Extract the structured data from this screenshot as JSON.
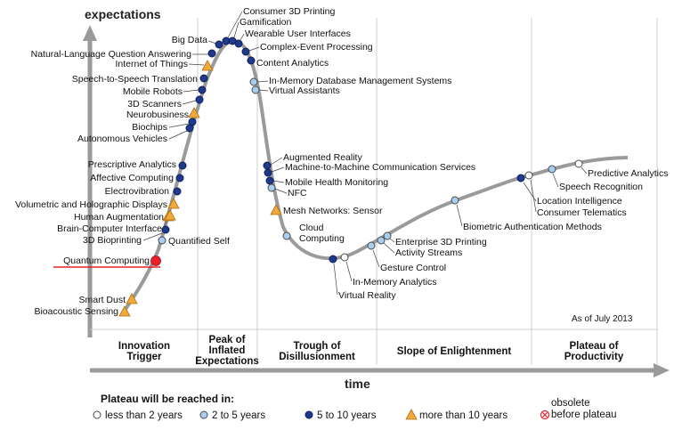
{
  "axes": {
    "y_label": "expectations",
    "x_label": "time"
  },
  "as_of": "As of July 2013",
  "phases": [
    [
      "Innovation",
      "Trigger"
    ],
    [
      "Peak of",
      "Inflated",
      "Expectations"
    ],
    [
      "Trough of",
      "Disillusionment"
    ],
    [
      "Slope of Enlightenment"
    ],
    [
      "Plateau of",
      "Productivity"
    ]
  ],
  "legend": {
    "title": "Plateau will be reached in:",
    "items": [
      {
        "label": "less than 2 years",
        "kind": "white"
      },
      {
        "label": "2 to 5 years",
        "kind": "lightblue"
      },
      {
        "label": "5 to 10 years",
        "kind": "darkblue"
      },
      {
        "label": "more than 10 years",
        "kind": "triangle"
      },
      {
        "label": [
          "obsolete",
          "before plateau"
        ],
        "kind": "obsolete"
      }
    ]
  },
  "colors": {
    "curve": "#9a9a9a",
    "white": "#ffffff",
    "lightblue": "#a9cdee",
    "darkblue": "#1f3a8a",
    "triangle": "#f0a93a",
    "highlight": "#e8202a",
    "obsolete": "#e8202a"
  },
  "technologies": [
    {
      "label": "Bioacoustic Sensing",
      "kind": "triangle",
      "phase": "Innovation Trigger"
    },
    {
      "label": "Smart Dust",
      "kind": "triangle",
      "phase": "Innovation Trigger"
    },
    {
      "label": "Quantum Computing",
      "kind": "highlight",
      "phase": "Innovation Trigger"
    },
    {
      "label": "Quantified Self",
      "kind": "lightblue",
      "phase": "Innovation Trigger"
    },
    {
      "label": "3D Bioprinting",
      "kind": "darkblue",
      "phase": "Innovation Trigger"
    },
    {
      "label": "Brain-Computer Interface",
      "kind": "triangle",
      "phase": "Innovation Trigger"
    },
    {
      "label": "Human Augmentation",
      "kind": "triangle",
      "phase": "Innovation Trigger"
    },
    {
      "label": "Volumetric and Holographic Displays",
      "kind": "triangle",
      "phase": "Innovation Trigger"
    },
    {
      "label": "Electrovibration",
      "kind": "darkblue",
      "phase": "Innovation Trigger"
    },
    {
      "label": "Affective Computing",
      "kind": "darkblue",
      "phase": "Innovation Trigger"
    },
    {
      "label": "Prescriptive Analytics",
      "kind": "darkblue",
      "phase": "Innovation Trigger"
    },
    {
      "label": "Autonomous Vehicles",
      "kind": "darkblue",
      "phase": "Peak of Inflated Expectations"
    },
    {
      "label": "Biochips",
      "kind": "darkblue",
      "phase": "Peak of Inflated Expectations"
    },
    {
      "label": "Neurobusiness",
      "kind": "triangle",
      "phase": "Peak of Inflated Expectations"
    },
    {
      "label": "3D Scanners",
      "kind": "darkblue",
      "phase": "Peak of Inflated Expectations"
    },
    {
      "label": "Mobile Robots",
      "kind": "darkblue",
      "phase": "Peak of Inflated Expectations"
    },
    {
      "label": "Speech-to-Speech Translation",
      "kind": "darkblue",
      "phase": "Peak of Inflated Expectations"
    },
    {
      "label": "Internet of Things",
      "kind": "triangle",
      "phase": "Peak of Inflated Expectations"
    },
    {
      "label": "Natural-Language Question Answering",
      "kind": "darkblue",
      "phase": "Peak of Inflated Expectations"
    },
    {
      "label": "Big Data",
      "kind": "darkblue",
      "phase": "Peak of Inflated Expectations"
    },
    {
      "label": "Consumer 3D Printing",
      "kind": "darkblue",
      "phase": "Peak of Inflated Expectations"
    },
    {
      "label": "Gamification",
      "kind": "darkblue",
      "phase": "Peak of Inflated Expectations"
    },
    {
      "label": "Wearable User Interfaces",
      "kind": "darkblue",
      "phase": "Peak of Inflated Expectations"
    },
    {
      "label": "Complex-Event Processing",
      "kind": "darkblue",
      "phase": "Peak of Inflated Expectations"
    },
    {
      "label": "Content Analytics",
      "kind": "darkblue",
      "phase": "Trough of Disillusionment"
    },
    {
      "label": "In-Memory Database Management Systems",
      "kind": "lightblue",
      "phase": "Trough of Disillusionment"
    },
    {
      "label": "Virtual Assistants",
      "kind": "lightblue",
      "phase": "Trough of Disillusionment"
    },
    {
      "label": "Augmented Reality",
      "kind": "darkblue",
      "phase": "Trough of Disillusionment"
    },
    {
      "label": "Machine-to-Machine Communication Services",
      "kind": "darkblue",
      "phase": "Trough of Disillusionment"
    },
    {
      "label": "Mobile Health Monitoring",
      "kind": "darkblue",
      "phase": "Trough of Disillusionment"
    },
    {
      "label": "NFC",
      "kind": "lightblue",
      "phase": "Trough of Disillusionment"
    },
    {
      "label": "Mesh Networks: Sensor",
      "kind": "triangle",
      "phase": "Trough of Disillusionment"
    },
    {
      "label": "Cloud Computing",
      "kind": "lightblue",
      "phase": "Trough of Disillusionment"
    },
    {
      "label": "Virtual Reality",
      "kind": "darkblue",
      "phase": "Trough of Disillusionment"
    },
    {
      "label": "In-Memory Analytics",
      "kind": "white",
      "phase": "Trough of Disillusionment"
    },
    {
      "label": "Gesture Control",
      "kind": "lightblue",
      "phase": "Slope of Enlightenment"
    },
    {
      "label": "Activity Streams",
      "kind": "lightblue",
      "phase": "Slope of Enlightenment"
    },
    {
      "label": "Enterprise 3D Printing",
      "kind": "lightblue",
      "phase": "Slope of Enlightenment"
    },
    {
      "label": "Biometric Authentication Methods",
      "kind": "lightblue",
      "phase": "Slope of Enlightenment"
    },
    {
      "label": "Location Intelligence",
      "kind": "darkblue",
      "phase": "Slope of Enlightenment"
    },
    {
      "label": "Consumer Telematics",
      "kind": "white",
      "phase": "Slope of Enlightenment"
    },
    {
      "label": "Speech Recognition",
      "kind": "lightblue",
      "phase": "Slope of Enlightenment"
    },
    {
      "label": "Predictive Analytics",
      "kind": "white",
      "phase": "Plateau of Productivity"
    }
  ]
}
